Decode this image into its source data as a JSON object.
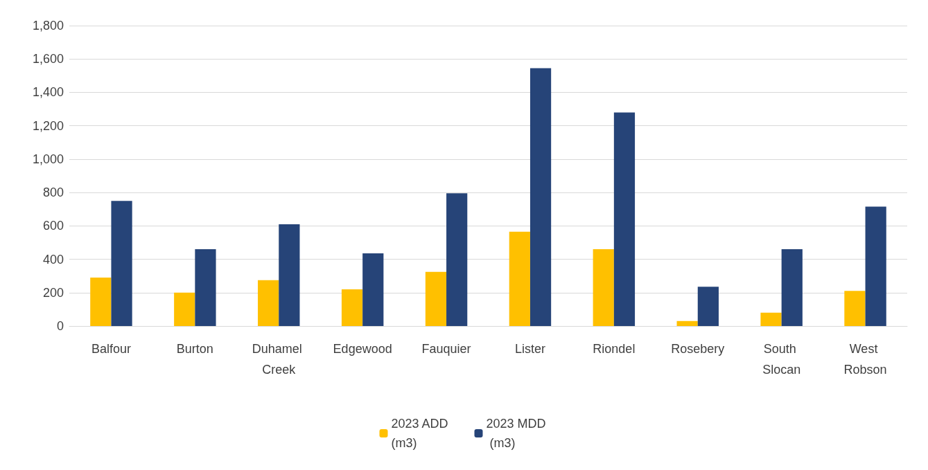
{
  "chart_data": {
    "type": "bar",
    "categories": [
      "Balfour",
      "Burton",
      "Duhamel Creek",
      "Edgewood",
      "Fauquier",
      "Lister",
      "Riondel",
      "Rosebery",
      "South Slocan",
      "West Robson"
    ],
    "series": [
      {
        "name": "2023 ADD (m3)",
        "color": "#ffc000",
        "values": [
          290,
          200,
          275,
          220,
          325,
          565,
          460,
          30,
          80,
          210
        ]
      },
      {
        "name": "2023 MDD (m3)",
        "color": "#264478",
        "values": [
          750,
          460,
          610,
          435,
          795,
          1545,
          1280,
          235,
          460,
          715
        ]
      }
    ],
    "ylim": [
      0,
      1800
    ],
    "yticks": [
      {
        "value": 0,
        "label": "0"
      },
      {
        "value": 200,
        "label": "200"
      },
      {
        "value": 400,
        "label": "400"
      },
      {
        "value": 600,
        "label": "600"
      },
      {
        "value": 800,
        "label": "800"
      },
      {
        "value": 1000,
        "label": "1,000"
      },
      {
        "value": 1200,
        "label": "1,200"
      },
      {
        "value": 1400,
        "label": "1,400"
      },
      {
        "value": 1600,
        "label": "1,600"
      },
      {
        "value": 1800,
        "label": "1,800"
      }
    ],
    "grid": "y",
    "legend": "bottom"
  }
}
